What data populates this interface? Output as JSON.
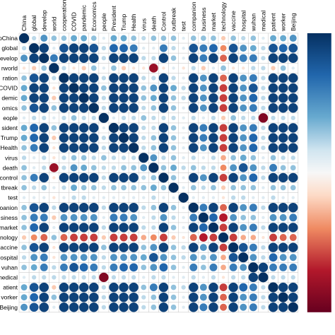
{
  "chart_data": {
    "type": "heatmap",
    "style": "correlation-circles",
    "title": "",
    "variables": [
      "China",
      "global",
      "develop",
      "world",
      "cooperation",
      "COVID",
      "pandemic",
      "Economics",
      "people",
      "President",
      "Trump",
      "Health",
      "virus",
      "death",
      "Control",
      "outbreak",
      "test",
      "companion",
      "business",
      "market",
      "technology",
      "vaccine",
      "hospital",
      "wuhan",
      "medical",
      "patient",
      "worker",
      "Beijing"
    ],
    "row_labels": [
      "oChina",
      "global",
      "evelop",
      "rworld",
      "ration",
      "COVID",
      "demic",
      "omics",
      "eople",
      "sident",
      "Trump",
      "Health",
      "virus",
      "death",
      "control",
      "tbreak",
      "test",
      "oanion",
      "siness",
      "market",
      "nology",
      "accine",
      "ospital",
      "vuhan",
      "nedical",
      "atient",
      "vorker",
      "Beijing"
    ],
    "color_scale": {
      "range": [
        -1,
        1
      ],
      "negative": "#b2182b",
      "neutral": "#f7f7f7",
      "positive": "#053061"
    },
    "grid": true,
    "legend": "colorbar-right",
    "matrix": [
      [
        1,
        0.2,
        0.5,
        0.3,
        0.3,
        0.4,
        0.4,
        0.3,
        0.1,
        0.4,
        0.4,
        0.3,
        0.2,
        0.3,
        0.3,
        0.3,
        0.1,
        0.3,
        0.3,
        0.3,
        -0.2,
        0.3,
        0.2,
        0.3,
        0.1,
        0.4,
        0.4,
        0.5
      ],
      [
        0.2,
        1,
        0.9,
        0.1,
        0.8,
        0.9,
        0.9,
        0.8,
        0.2,
        0.7,
        0.7,
        0.6,
        0.1,
        0.1,
        0.6,
        0.2,
        0.1,
        0.8,
        0.6,
        0.7,
        -0.4,
        0.8,
        0.5,
        0.4,
        0.2,
        0.8,
        0.7,
        0.8
      ],
      [
        0.5,
        0.9,
        1,
        0.6,
        0.9,
        0.9,
        0.9,
        0.9,
        0.2,
        0.9,
        0.9,
        0.9,
        0.2,
        0.2,
        0.9,
        0.3,
        0.1,
        0.9,
        0.6,
        0.9,
        -0.5,
        0.9,
        0.6,
        0.6,
        0.2,
        0.9,
        0.9,
        0.9
      ],
      [
        -0.1,
        -0.2,
        0.3,
        1,
        0.2,
        -0.1,
        -0.2,
        0.3,
        0.1,
        0.3,
        -0.2,
        -0.1,
        -0.1,
        -0.8,
        -0.1,
        0.1,
        -0.1,
        0.2,
        -0.2,
        0.1,
        0.3,
        -0.1,
        -0.1,
        0.2,
        0.2,
        -0.2,
        0.3,
        0.1
      ],
      [
        0.3,
        0.8,
        0.9,
        0.2,
        1,
        0.9,
        0.9,
        0.9,
        0.2,
        0.9,
        0.9,
        0.9,
        0.2,
        0.2,
        0.9,
        0.2,
        0.1,
        0.9,
        0.5,
        0.9,
        -0.5,
        0.9,
        0.5,
        0.6,
        0.2,
        0.9,
        0.9,
        0.9
      ],
      [
        0.4,
        0.9,
        0.9,
        -0.1,
        0.9,
        1,
        0.9,
        0.9,
        0.3,
        0.9,
        0.9,
        0.9,
        0.3,
        0.5,
        0.9,
        0.4,
        0.2,
        0.9,
        0.5,
        0.9,
        -0.6,
        0.9,
        0.5,
        0.8,
        0.2,
        0.9,
        0.9,
        0.9
      ],
      [
        0.4,
        0.9,
        0.9,
        -0.2,
        0.9,
        0.9,
        1,
        0.9,
        0.2,
        0.9,
        0.9,
        0.9,
        0.3,
        0.4,
        0.9,
        0.3,
        0.2,
        0.9,
        0.5,
        0.9,
        -0.6,
        0.9,
        0.5,
        0.7,
        0.2,
        0.9,
        0.9,
        0.9
      ],
      [
        0.3,
        0.8,
        0.9,
        0.3,
        0.9,
        0.9,
        0.9,
        1,
        0.2,
        0.9,
        0.9,
        0.9,
        0.2,
        0.3,
        0.9,
        0.3,
        0.1,
        0.9,
        0.5,
        0.9,
        -0.6,
        0.9,
        0.5,
        0.6,
        0.2,
        0.9,
        0.9,
        0.9
      ],
      [
        0.1,
        0.2,
        0.2,
        0.1,
        0.2,
        0.3,
        0.2,
        0.2,
        1,
        0.1,
        0.2,
        0.2,
        0.3,
        0.2,
        0.2,
        0.2,
        0.1,
        0.2,
        0.1,
        0.2,
        -0.2,
        0.3,
        0.2,
        0.2,
        -0.9,
        0.2,
        0.2,
        0.2
      ],
      [
        0.4,
        0.7,
        0.9,
        0.3,
        0.9,
        0.9,
        0.9,
        0.9,
        0.1,
        1,
        0.9,
        0.9,
        0.2,
        0.2,
        0.9,
        0.3,
        0.1,
        0.9,
        0.6,
        0.9,
        -0.6,
        0.9,
        0.5,
        0.6,
        0.2,
        0.9,
        0.9,
        0.9
      ],
      [
        0.4,
        0.7,
        0.9,
        -0.2,
        0.9,
        0.9,
        0.9,
        0.9,
        0.2,
        0.9,
        1,
        0.9,
        0.2,
        0.3,
        0.9,
        0.3,
        0.1,
        0.9,
        0.6,
        0.9,
        -0.6,
        0.9,
        0.5,
        0.7,
        0.2,
        0.9,
        0.9,
        0.9
      ],
      [
        0.3,
        0.6,
        0.9,
        -0.1,
        0.9,
        0.9,
        0.9,
        0.9,
        0.2,
        0.9,
        0.9,
        1,
        0.2,
        0.3,
        0.9,
        0.3,
        0.1,
        0.9,
        0.5,
        0.9,
        -0.6,
        0.9,
        0.5,
        0.7,
        0.2,
        0.9,
        0.9,
        0.9
      ],
      [
        0.2,
        0.1,
        0.2,
        -0.1,
        0.2,
        0.3,
        0.3,
        0.2,
        0.3,
        0.2,
        0.2,
        0.2,
        1,
        0.5,
        0.2,
        0.3,
        0.1,
        0.2,
        0.1,
        0.2,
        -0.3,
        0.3,
        0.4,
        0.3,
        0.1,
        0.3,
        0.2,
        0.2
      ],
      [
        0.3,
        0.1,
        0.2,
        -0.8,
        0.2,
        0.5,
        0.4,
        0.3,
        0.2,
        0.2,
        0.3,
        0.3,
        0.5,
        1,
        0.3,
        0.4,
        0.2,
        0.3,
        0.2,
        0.2,
        -0.4,
        0.5,
        0.8,
        0.5,
        0.2,
        0.6,
        0.3,
        0.3
      ],
      [
        0.3,
        0.6,
        0.9,
        -0.1,
        0.9,
        0.9,
        0.9,
        0.9,
        0.2,
        0.9,
        0.9,
        0.9,
        0.2,
        0.3,
        1,
        0.3,
        0.1,
        0.9,
        0.5,
        0.9,
        -0.6,
        0.9,
        0.5,
        0.7,
        0.2,
        0.9,
        0.9,
        0.9
      ],
      [
        0.3,
        0.2,
        0.3,
        0.1,
        0.2,
        0.4,
        0.3,
        0.3,
        0.2,
        0.3,
        0.3,
        0.3,
        0.3,
        0.4,
        0.3,
        1,
        0.1,
        0.3,
        0.2,
        0.3,
        -0.2,
        0.3,
        0.3,
        0.3,
        0.1,
        0.3,
        0.3,
        0.3
      ],
      [
        0.1,
        0.1,
        0.1,
        -0.1,
        0.1,
        0.2,
        0.2,
        0.1,
        0.1,
        0.1,
        0.1,
        0.1,
        0.1,
        0.2,
        0.1,
        0.1,
        1,
        0.1,
        0.1,
        0.1,
        -0.1,
        0.2,
        0.2,
        0.1,
        0.1,
        0.2,
        0.1,
        0.1
      ],
      [
        0.3,
        0.8,
        0.9,
        0.2,
        0.9,
        0.9,
        0.9,
        0.9,
        0.2,
        0.9,
        0.9,
        0.9,
        0.2,
        0.3,
        0.9,
        0.3,
        0.1,
        1,
        0.6,
        0.9,
        -0.5,
        0.9,
        0.5,
        0.6,
        0.2,
        0.9,
        0.9,
        0.9
      ],
      [
        0.3,
        0.6,
        0.6,
        -0.2,
        0.5,
        0.5,
        0.5,
        0.5,
        0.1,
        0.6,
        0.6,
        0.5,
        0.1,
        0.2,
        0.5,
        0.2,
        0.1,
        0.6,
        1,
        0.7,
        -0.7,
        0.5,
        0.3,
        0.3,
        0.1,
        0.5,
        0.5,
        0.6
      ],
      [
        0.3,
        0.7,
        0.9,
        0.1,
        0.9,
        0.9,
        0.9,
        0.9,
        0.2,
        0.9,
        0.9,
        0.9,
        0.2,
        0.2,
        0.9,
        0.3,
        0.1,
        0.9,
        0.7,
        1,
        -0.6,
        0.9,
        0.5,
        0.6,
        0.2,
        0.9,
        0.9,
        0.9
      ],
      [
        -0.2,
        -0.4,
        -0.5,
        0.3,
        -0.5,
        -0.6,
        -0.6,
        -0.6,
        -0.2,
        -0.6,
        -0.6,
        -0.6,
        -0.3,
        -0.4,
        -0.6,
        -0.2,
        -0.1,
        -0.5,
        -0.7,
        -0.6,
        1,
        -0.6,
        -0.3,
        -0.3,
        -0.1,
        -0.6,
        -0.5,
        -0.5
      ],
      [
        0.3,
        0.8,
        0.9,
        -0.1,
        0.9,
        0.9,
        0.9,
        0.9,
        0.3,
        0.9,
        0.9,
        0.9,
        0.3,
        0.5,
        0.9,
        0.3,
        0.2,
        0.9,
        0.5,
        0.9,
        -0.6,
        1,
        0.8,
        0.6,
        0.2,
        0.9,
        0.9,
        0.9
      ],
      [
        0.2,
        0.5,
        0.6,
        -0.1,
        0.5,
        0.5,
        0.5,
        0.5,
        0.2,
        0.5,
        0.5,
        0.5,
        0.4,
        0.8,
        0.5,
        0.3,
        0.2,
        0.5,
        0.3,
        0.5,
        -0.3,
        0.8,
        1,
        0.5,
        0.2,
        0.7,
        0.5,
        0.5
      ],
      [
        0.3,
        0.4,
        0.6,
        0.2,
        0.6,
        0.8,
        0.7,
        0.6,
        0.2,
        0.6,
        0.7,
        0.7,
        0.3,
        0.5,
        0.7,
        0.3,
        0.1,
        0.6,
        0.3,
        0.6,
        -0.3,
        0.6,
        0.5,
        1,
        0.9,
        0.6,
        0.6,
        0.6
      ],
      [
        0.1,
        0.2,
        0.2,
        0.2,
        0.2,
        0.2,
        0.2,
        0.2,
        -0.9,
        0.2,
        0.2,
        0.2,
        0.1,
        0.2,
        0.2,
        0.1,
        0.1,
        0.2,
        0.1,
        0.2,
        -0.1,
        0.2,
        0.2,
        0.9,
        1,
        0.2,
        0.2,
        0.2
      ],
      [
        0.4,
        0.8,
        0.9,
        -0.2,
        0.9,
        0.9,
        0.9,
        0.9,
        0.2,
        0.9,
        0.9,
        0.9,
        0.3,
        0.6,
        0.9,
        0.3,
        0.2,
        0.9,
        0.5,
        0.9,
        -0.6,
        0.9,
        0.7,
        0.6,
        0.2,
        1,
        0.9,
        0.9
      ],
      [
        0.4,
        0.7,
        0.9,
        0.3,
        0.9,
        0.9,
        0.9,
        0.9,
        0.2,
        0.9,
        0.9,
        0.9,
        0.2,
        0.3,
        0.9,
        0.3,
        0.1,
        0.9,
        0.5,
        0.9,
        -0.5,
        0.9,
        0.5,
        0.6,
        0.2,
        0.9,
        1,
        0.9
      ],
      [
        0.5,
        0.8,
        0.9,
        0.1,
        0.9,
        0.9,
        0.9,
        0.9,
        0.2,
        0.9,
        0.9,
        0.9,
        0.2,
        0.3,
        0.9,
        0.3,
        0.1,
        0.9,
        0.6,
        0.9,
        -0.5,
        0.9,
        0.5,
        0.6,
        0.2,
        0.9,
        0.9,
        1
      ]
    ]
  }
}
